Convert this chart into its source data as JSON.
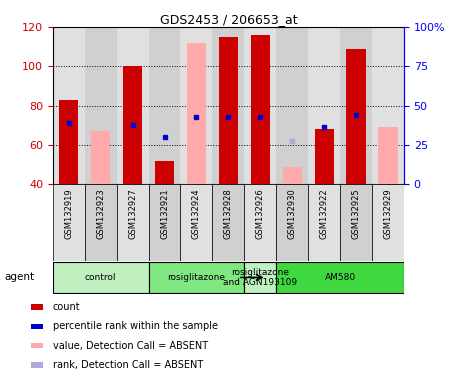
{
  "title": "GDS2453 / 206653_at",
  "samples": [
    "GSM132919",
    "GSM132923",
    "GSM132927",
    "GSM132921",
    "GSM132924",
    "GSM132928",
    "GSM132926",
    "GSM132930",
    "GSM132922",
    "GSM132925",
    "GSM132929"
  ],
  "ylim_left": [
    40,
    120
  ],
  "ylim_right": [
    0,
    100
  ],
  "yticks_left": [
    40,
    60,
    80,
    100,
    120
  ],
  "yticks_right": [
    0,
    25,
    50,
    75,
    100
  ],
  "yticklabels_right": [
    "0",
    "25",
    "50",
    "75",
    "100%"
  ],
  "red_bars": [
    83,
    0,
    100,
    52,
    0,
    115,
    116,
    0,
    68,
    109,
    0
  ],
  "pink_bars": [
    0,
    67,
    0,
    0,
    112,
    0,
    0,
    49,
    0,
    0,
    69
  ],
  "blue_squares_x": [
    0,
    2,
    3,
    4,
    5,
    6,
    8,
    9
  ],
  "blue_squares_y": [
    71,
    70,
    64,
    74,
    74,
    74,
    69,
    75
  ],
  "light_blue_squares_x": [
    7
  ],
  "light_blue_squares_y": [
    62
  ],
  "groups": [
    {
      "label": "control",
      "start": 0,
      "end": 3,
      "color": "#c0f0c0"
    },
    {
      "label": "rosiglitazone",
      "start": 3,
      "end": 6,
      "color": "#80e880"
    },
    {
      "label": "rosiglitazone\nand AGN193109",
      "start": 6,
      "end": 7,
      "color": "#c0f0c0"
    },
    {
      "label": "AM580",
      "start": 7,
      "end": 11,
      "color": "#40d840"
    }
  ],
  "bar_width": 0.6,
  "red_color": "#cc0000",
  "pink_color": "#ffaaaa",
  "blue_color": "#0000cc",
  "light_blue_color": "#aaaadd",
  "col_bg_even": "#e0e0e0",
  "col_bg_odd": "#d0d0d0",
  "legend_items": [
    {
      "color": "#cc0000",
      "label": "count"
    },
    {
      "color": "#0000cc",
      "label": "percentile rank within the sample"
    },
    {
      "color": "#ffaaaa",
      "label": "value, Detection Call = ABSENT"
    },
    {
      "color": "#aaaadd",
      "label": "rank, Detection Call = ABSENT"
    }
  ]
}
